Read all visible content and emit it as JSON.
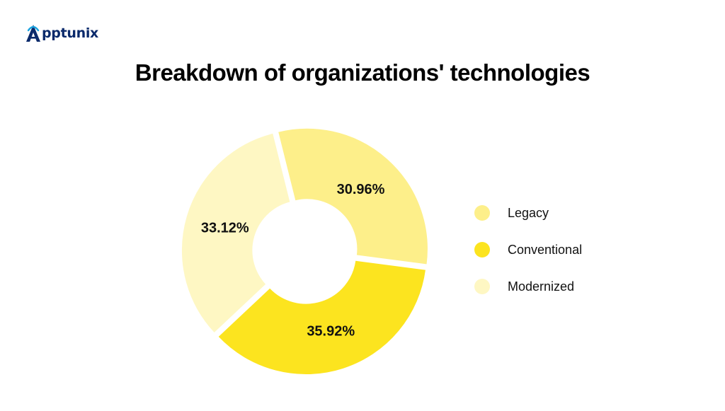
{
  "brand": {
    "logo_text": "pptunix",
    "logo_icon": "apptunix-a-logo",
    "logo_color": "#0b2a6b"
  },
  "title": "Breakdown of organizations' technologies",
  "chart_data": {
    "type": "pie",
    "donut": true,
    "title": "Breakdown of organizations' technologies",
    "legend_position": "right",
    "start_angle_deg": -14,
    "slices": [
      {
        "name": "Legacy",
        "value": 30.96,
        "label": "30.96%",
        "color": "#fdef8a"
      },
      {
        "name": "Conventional",
        "value": 35.92,
        "label": "35.92%",
        "color": "#fce41f"
      },
      {
        "name": "Modernized",
        "value": 33.12,
        "label": "33.12%",
        "color": "#fef7c3"
      }
    ]
  }
}
